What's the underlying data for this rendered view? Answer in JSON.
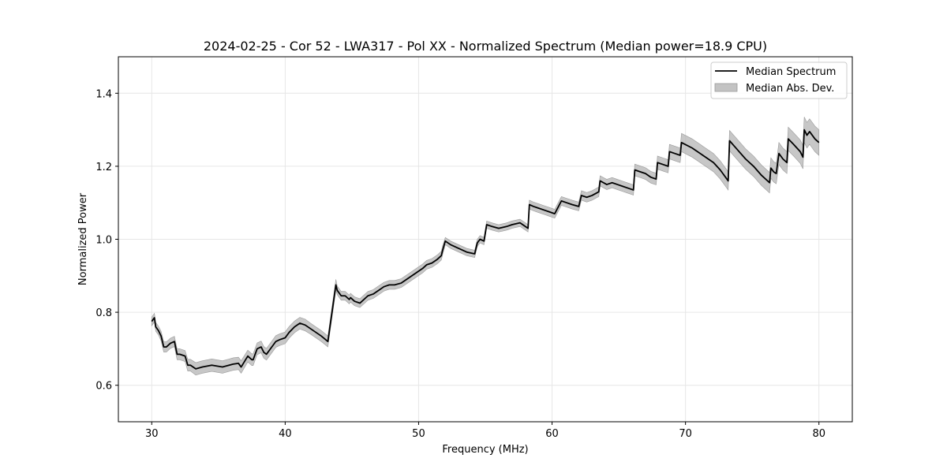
{
  "chart_data": {
    "type": "line",
    "title": "2024-02-25 - Cor 52 - LWA317 - Pol XX - Normalized Spectrum (Median power=18.9 CPU)",
    "xlabel": "Frequency (MHz)",
    "ylabel": "Normalized Power",
    "xlim": [
      27.5,
      82.5
    ],
    "ylim": [
      0.5,
      1.5
    ],
    "xticks": [
      30,
      40,
      50,
      60,
      70,
      80
    ],
    "yticks": [
      0.6,
      0.8,
      1.0,
      1.2,
      1.4
    ],
    "xtick_labels": [
      "30",
      "40",
      "50",
      "60",
      "70",
      "80"
    ],
    "ytick_labels": [
      "0.6",
      "0.8",
      "1.0",
      "1.2",
      "1.4"
    ],
    "grid": true,
    "legend_position": "top-right",
    "colors": {
      "line": "#000000",
      "band": "#b4b4b4",
      "grid": "#e6e6e6"
    },
    "series": [
      {
        "name": "Median Spectrum",
        "style": "line",
        "x": [
          30.0,
          30.2,
          30.3,
          30.5,
          30.7,
          30.9,
          31.1,
          31.4,
          31.7,
          31.9,
          32.1,
          32.5,
          32.7,
          32.9,
          33.3,
          33.8,
          34.5,
          35.3,
          35.8,
          36.1,
          36.5,
          36.7,
          37.2,
          37.5,
          37.6,
          37.9,
          38.2,
          38.4,
          38.6,
          38.9,
          39.3,
          39.6,
          40.0,
          40.3,
          40.7,
          41.1,
          41.5,
          41.9,
          42.3,
          42.7,
          43.2,
          43.8,
          43.9,
          44.2,
          44.5,
          44.8,
          44.9,
          45.2,
          45.6,
          45.9,
          46.2,
          46.6,
          47.0,
          47.4,
          47.8,
          48.2,
          48.7,
          49.1,
          49.5,
          49.9,
          50.3,
          50.6,
          51.0,
          51.4,
          51.7,
          51.8,
          52.0,
          52.4,
          53.0,
          53.6,
          54.2,
          54.4,
          54.6,
          54.9,
          55.1,
          55.5,
          56.0,
          56.6,
          57.0,
          57.6,
          58.2,
          58.3,
          58.6,
          59.0,
          59.4,
          59.8,
          60.2,
          60.7,
          61.1,
          61.5,
          62.0,
          62.2,
          62.6,
          63.0,
          63.5,
          63.6,
          64.1,
          64.5,
          64.9,
          65.3,
          65.7,
          66.1,
          66.2,
          66.6,
          67.0,
          67.4,
          67.8,
          67.9,
          68.3,
          68.7,
          68.8,
          69.2,
          69.6,
          69.7,
          70.5,
          71.3,
          72.1,
          72.6,
          73.2,
          73.3,
          73.9,
          74.5,
          75.1,
          75.7,
          76.3,
          76.4,
          76.6,
          76.8,
          77.0,
          77.3,
          77.6,
          77.7,
          78.1,
          78.6,
          78.8,
          78.9,
          79.1,
          79.3,
          79.5,
          79.7,
          80.0
        ],
        "values": [
          0.775,
          0.785,
          0.76,
          0.75,
          0.735,
          0.705,
          0.705,
          0.715,
          0.72,
          0.685,
          0.685,
          0.68,
          0.655,
          0.655,
          0.645,
          0.65,
          0.655,
          0.65,
          0.655,
          0.658,
          0.66,
          0.65,
          0.68,
          0.67,
          0.67,
          0.7,
          0.705,
          0.69,
          0.685,
          0.7,
          0.72,
          0.725,
          0.73,
          0.745,
          0.76,
          0.77,
          0.765,
          0.755,
          0.745,
          0.735,
          0.72,
          0.875,
          0.86,
          0.845,
          0.845,
          0.835,
          0.84,
          0.83,
          0.825,
          0.835,
          0.845,
          0.85,
          0.86,
          0.87,
          0.875,
          0.875,
          0.88,
          0.89,
          0.9,
          0.91,
          0.92,
          0.93,
          0.935,
          0.945,
          0.955,
          0.97,
          0.995,
          0.985,
          0.975,
          0.965,
          0.96,
          0.99,
          1.0,
          0.995,
          1.04,
          1.035,
          1.03,
          1.035,
          1.04,
          1.045,
          1.03,
          1.095,
          1.09,
          1.085,
          1.08,
          1.075,
          1.07,
          1.105,
          1.1,
          1.095,
          1.09,
          1.12,
          1.115,
          1.12,
          1.13,
          1.16,
          1.15,
          1.155,
          1.15,
          1.145,
          1.14,
          1.135,
          1.19,
          1.185,
          1.18,
          1.17,
          1.165,
          1.21,
          1.205,
          1.2,
          1.24,
          1.235,
          1.23,
          1.265,
          1.25,
          1.23,
          1.21,
          1.19,
          1.16,
          1.27,
          1.245,
          1.22,
          1.2,
          1.175,
          1.155,
          1.195,
          1.185,
          1.18,
          1.235,
          1.22,
          1.21,
          1.275,
          1.26,
          1.24,
          1.225,
          1.3,
          1.285,
          1.295,
          1.285,
          1.275,
          1.265
        ]
      },
      {
        "name": "Median Abs. Dev.",
        "style": "band",
        "half_width": [
          0.012,
          0.012,
          0.012,
          0.012,
          0.013,
          0.014,
          0.014,
          0.014,
          0.014,
          0.015,
          0.015,
          0.015,
          0.016,
          0.016,
          0.017,
          0.017,
          0.017,
          0.017,
          0.017,
          0.017,
          0.017,
          0.017,
          0.016,
          0.016,
          0.016,
          0.016,
          0.016,
          0.016,
          0.016,
          0.016,
          0.016,
          0.016,
          0.016,
          0.016,
          0.016,
          0.016,
          0.016,
          0.015,
          0.015,
          0.015,
          0.015,
          0.015,
          0.012,
          0.012,
          0.012,
          0.012,
          0.012,
          0.012,
          0.012,
          0.012,
          0.012,
          0.012,
          0.012,
          0.012,
          0.012,
          0.012,
          0.012,
          0.012,
          0.012,
          0.012,
          0.012,
          0.012,
          0.012,
          0.012,
          0.012,
          0.012,
          0.01,
          0.01,
          0.01,
          0.01,
          0.01,
          0.01,
          0.01,
          0.01,
          0.01,
          0.01,
          0.01,
          0.01,
          0.01,
          0.01,
          0.01,
          0.012,
          0.012,
          0.012,
          0.012,
          0.012,
          0.012,
          0.012,
          0.012,
          0.012,
          0.012,
          0.013,
          0.013,
          0.013,
          0.013,
          0.014,
          0.014,
          0.014,
          0.014,
          0.014,
          0.014,
          0.014,
          0.016,
          0.016,
          0.016,
          0.016,
          0.016,
          0.018,
          0.018,
          0.018,
          0.02,
          0.02,
          0.02,
          0.025,
          0.025,
          0.025,
          0.025,
          0.025,
          0.025,
          0.028,
          0.028,
          0.028,
          0.028,
          0.028,
          0.028,
          0.028,
          0.028,
          0.028,
          0.03,
          0.03,
          0.03,
          0.032,
          0.032,
          0.032,
          0.032,
          0.035,
          0.035,
          0.035,
          0.035,
          0.035,
          0.035
        ]
      }
    ]
  }
}
